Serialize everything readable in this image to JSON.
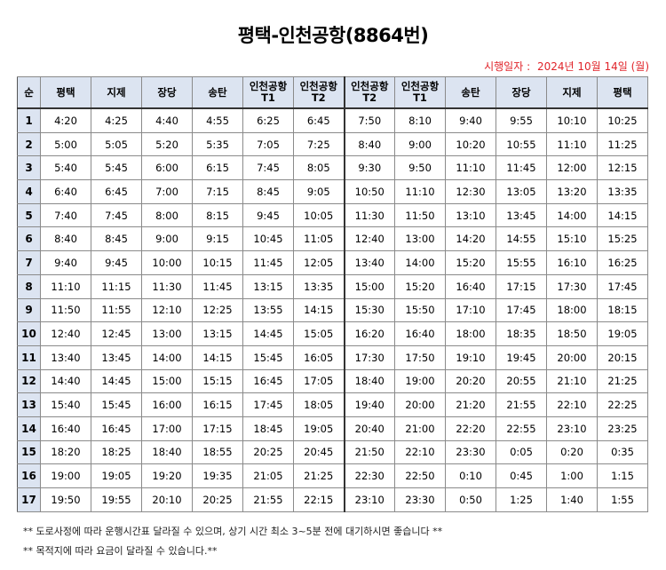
{
  "title": "평택-인천공항(8864번)",
  "effective": {
    "label": "시행일자 :",
    "date": "2024년 10월 14일 (월)"
  },
  "table": {
    "headers": [
      "순",
      "평택",
      "지제",
      "장당",
      "송탄",
      "인천공항 T1",
      "인천공항 T2",
      "인천공항 T2",
      "인천공항 T1",
      "송탄",
      "장당",
      "지제",
      "평택"
    ],
    "rows": [
      [
        "1",
        "4:20",
        "4:25",
        "4:40",
        "4:55",
        "6:25",
        "6:45",
        "7:50",
        "8:10",
        "9:40",
        "9:55",
        "10:10",
        "10:25"
      ],
      [
        "2",
        "5:00",
        "5:05",
        "5:20",
        "5:35",
        "7:05",
        "7:25",
        "8:40",
        "9:00",
        "10:20",
        "10:55",
        "11:10",
        "11:25"
      ],
      [
        "3",
        "5:40",
        "5:45",
        "6:00",
        "6:15",
        "7:45",
        "8:05",
        "9:30",
        "9:50",
        "11:10",
        "11:45",
        "12:00",
        "12:15"
      ],
      [
        "4",
        "6:40",
        "6:45",
        "7:00",
        "7:15",
        "8:45",
        "9:05",
        "10:50",
        "11:10",
        "12:30",
        "13:05",
        "13:20",
        "13:35"
      ],
      [
        "5",
        "7:40",
        "7:45",
        "8:00",
        "8:15",
        "9:45",
        "10:05",
        "11:30",
        "11:50",
        "13:10",
        "13:45",
        "14:00",
        "14:15"
      ],
      [
        "6",
        "8:40",
        "8:45",
        "9:00",
        "9:15",
        "10:45",
        "11:05",
        "12:40",
        "13:00",
        "14:20",
        "14:55",
        "15:10",
        "15:25"
      ],
      [
        "7",
        "9:40",
        "9:45",
        "10:00",
        "10:15",
        "11:45",
        "12:05",
        "13:40",
        "14:00",
        "15:20",
        "15:55",
        "16:10",
        "16:25"
      ],
      [
        "8",
        "11:10",
        "11:15",
        "11:30",
        "11:45",
        "13:15",
        "13:35",
        "15:00",
        "15:20",
        "16:40",
        "17:15",
        "17:30",
        "17:45"
      ],
      [
        "9",
        "11:50",
        "11:55",
        "12:10",
        "12:25",
        "13:55",
        "14:15",
        "15:30",
        "15:50",
        "17:10",
        "17:45",
        "18:00",
        "18:15"
      ],
      [
        "10",
        "12:40",
        "12:45",
        "13:00",
        "13:15",
        "14:45",
        "15:05",
        "16:20",
        "16:40",
        "18:00",
        "18:35",
        "18:50",
        "19:05"
      ],
      [
        "11",
        "13:40",
        "13:45",
        "14:00",
        "14:15",
        "15:45",
        "16:05",
        "17:30",
        "17:50",
        "19:10",
        "19:45",
        "20:00",
        "20:15"
      ],
      [
        "12",
        "14:40",
        "14:45",
        "15:00",
        "15:15",
        "16:45",
        "17:05",
        "18:40",
        "19:00",
        "20:20",
        "20:55",
        "21:10",
        "21:25"
      ],
      [
        "13",
        "15:40",
        "15:45",
        "16:00",
        "16:15",
        "17:45",
        "18:05",
        "19:40",
        "20:00",
        "21:20",
        "21:55",
        "22:10",
        "22:25"
      ],
      [
        "14",
        "16:40",
        "16:45",
        "17:00",
        "17:15",
        "18:45",
        "19:05",
        "20:40",
        "21:00",
        "22:20",
        "22:55",
        "23:10",
        "23:25"
      ],
      [
        "15",
        "18:20",
        "18:25",
        "18:40",
        "18:55",
        "20:25",
        "20:45",
        "21:50",
        "22:10",
        "23:30",
        "0:05",
        "0:20",
        "0:35"
      ],
      [
        "16",
        "19:00",
        "19:05",
        "19:20",
        "19:35",
        "21:05",
        "21:25",
        "22:30",
        "22:50",
        "0:10",
        "0:45",
        "1:00",
        "1:15"
      ],
      [
        "17",
        "19:50",
        "19:55",
        "20:10",
        "20:25",
        "21:55",
        "22:15",
        "23:10",
        "23:30",
        "0:50",
        "1:25",
        "1:40",
        "1:55"
      ]
    ]
  },
  "notes": [
    "** 도로사정에 따라 운행시간표 달라질 수 있으며, 상기 시간 최소 3~5분 전에 대기하시면 좋습니다 **",
    "** 목적지에 따라 요금이 달라질 수 있습니다.**"
  ],
  "colors": {
    "header_bg": "#dce4f1",
    "date_text": "#e0242a"
  }
}
